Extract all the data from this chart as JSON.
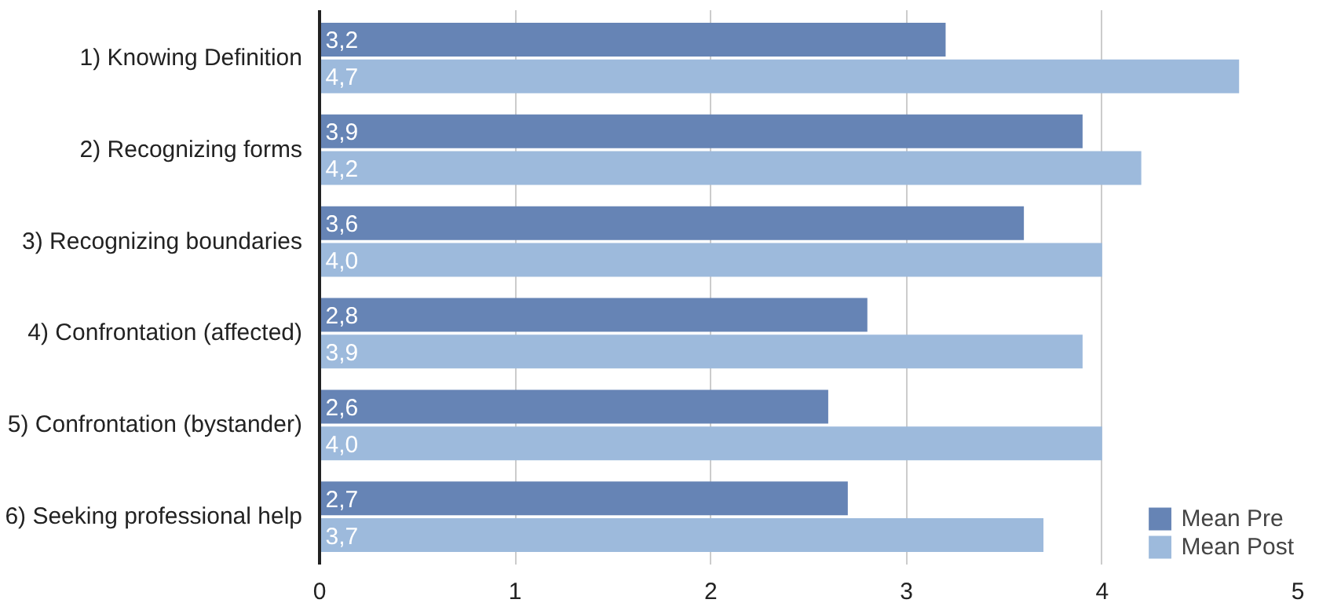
{
  "chart_data": {
    "type": "bar",
    "orientation": "horizontal",
    "categories": [
      "1) Knowing Definition",
      "2) Recognizing forms",
      "3) Recognizing boundaries",
      "4) Confrontation (affected)",
      "5) Confrontation (bystander)",
      "6) Seeking professional help"
    ],
    "series": [
      {
        "name": "Mean Pre",
        "color": "#6684b5",
        "values": [
          3.2,
          3.9,
          3.6,
          2.8,
          2.6,
          2.7
        ],
        "value_labels": [
          "3,2",
          "3,9",
          "3,6",
          "2,8",
          "2,6",
          "2,7"
        ]
      },
      {
        "name": "Mean Post",
        "color": "#9dbadc",
        "values": [
          4.7,
          4.2,
          4.0,
          3.9,
          4.0,
          3.7
        ],
        "value_labels": [
          "4,7",
          "4,2",
          "4,0",
          "3,9",
          "4,0",
          "3,7"
        ]
      }
    ],
    "xlim": [
      0,
      5
    ],
    "xticks": [
      0,
      1,
      2,
      3,
      4,
      5
    ],
    "grid": "x",
    "legend": "bottom right"
  }
}
